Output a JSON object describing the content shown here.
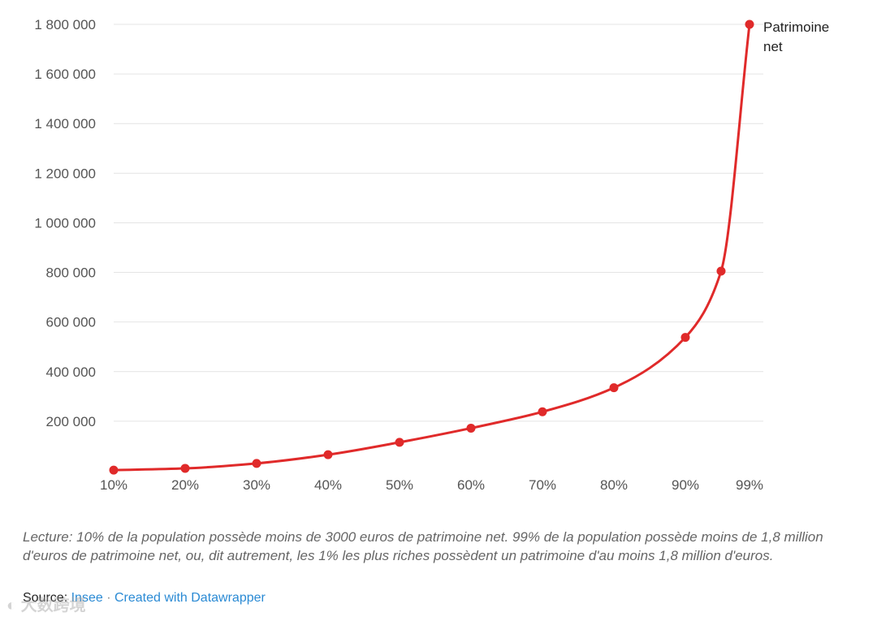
{
  "chart_data": {
    "type": "line",
    "x": [
      "10%",
      "20%",
      "30%",
      "40%",
      "50%",
      "60%",
      "70%",
      "80%",
      "90%",
      "95%",
      "99%"
    ],
    "x_tick_labels": [
      "10%",
      "20%",
      "30%",
      "40%",
      "50%",
      "60%",
      "70%",
      "80%",
      "90%",
      "99%"
    ],
    "series": [
      {
        "name": "Patrimoine net",
        "values": [
          3000,
          10000,
          30000,
          65000,
          115000,
          172000,
          238000,
          335000,
          538000,
          805000,
          1800000
        ]
      }
    ],
    "y_ticks": [
      200000,
      400000,
      600000,
      800000,
      1000000,
      1200000,
      1400000,
      1600000,
      1800000
    ],
    "y_tick_labels": [
      "200 000",
      "400 000",
      "600 000",
      "800 000",
      "1 000 000",
      "1 200 000",
      "1 400 000",
      "1 600 000",
      "1 800 000"
    ],
    "ylim": [
      0,
      1800000
    ],
    "grid": true,
    "legend": "inline-end-label",
    "colors": {
      "series": "#e02a2a",
      "grid": "#e4e4e4",
      "tick_text": "#555555"
    },
    "title": "",
    "xlabel": "",
    "ylabel": ""
  },
  "note": "Lecture: 10% de la population possède moins de 3000 euros de patrimoine net. 99% de la population possède moins de 1,8 million d'euros de patrimoine net, ou, dit autrement, les 1% les plus riches possèdent un patrimoine d'au moins 1,8 million d'euros.",
  "footer": {
    "source_label": "Source:",
    "source_name": "Insee",
    "separator": "·",
    "credit": "Created with Datawrapper"
  },
  "watermark": "大数跨境"
}
